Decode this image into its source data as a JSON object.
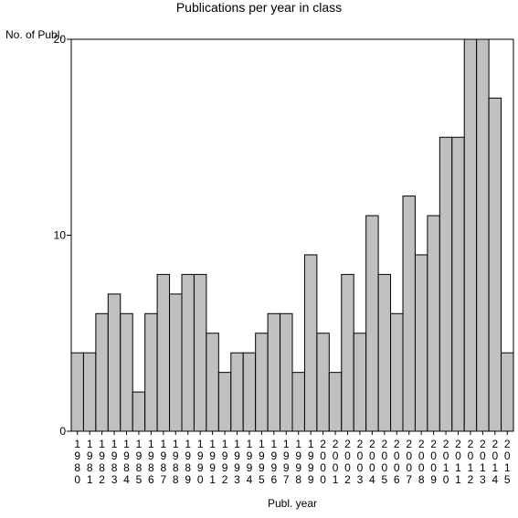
{
  "chart_data": {
    "type": "bar",
    "title": "Publications per year in class",
    "ylabel": "No. of Publ.",
    "xlabel": "Publ. year",
    "ylim": [
      0,
      20
    ],
    "yticks": [
      "0",
      "10",
      "20"
    ],
    "categories": [
      "1980",
      "1981",
      "1982",
      "1983",
      "1984",
      "1985",
      "1986",
      "1987",
      "1988",
      "1989",
      "1990",
      "1991",
      "1992",
      "1993",
      "1994",
      "1995",
      "1996",
      "1997",
      "1998",
      "1999",
      "2000",
      "2001",
      "2002",
      "2003",
      "2004",
      "2005",
      "2006",
      "2007",
      "2008",
      "2009",
      "2010",
      "2011",
      "2012",
      "2013",
      "2014",
      "2015"
    ],
    "values": [
      4,
      4,
      6,
      7,
      6,
      2,
      6,
      8,
      7,
      8,
      8,
      5,
      3,
      4,
      4,
      5,
      6,
      6,
      3,
      9,
      5,
      3,
      8,
      5,
      11,
      8,
      6,
      12,
      9,
      11,
      15,
      15,
      20,
      20,
      17,
      4
    ],
    "bar_color": "#c0c0c0",
    "grid": false
  }
}
